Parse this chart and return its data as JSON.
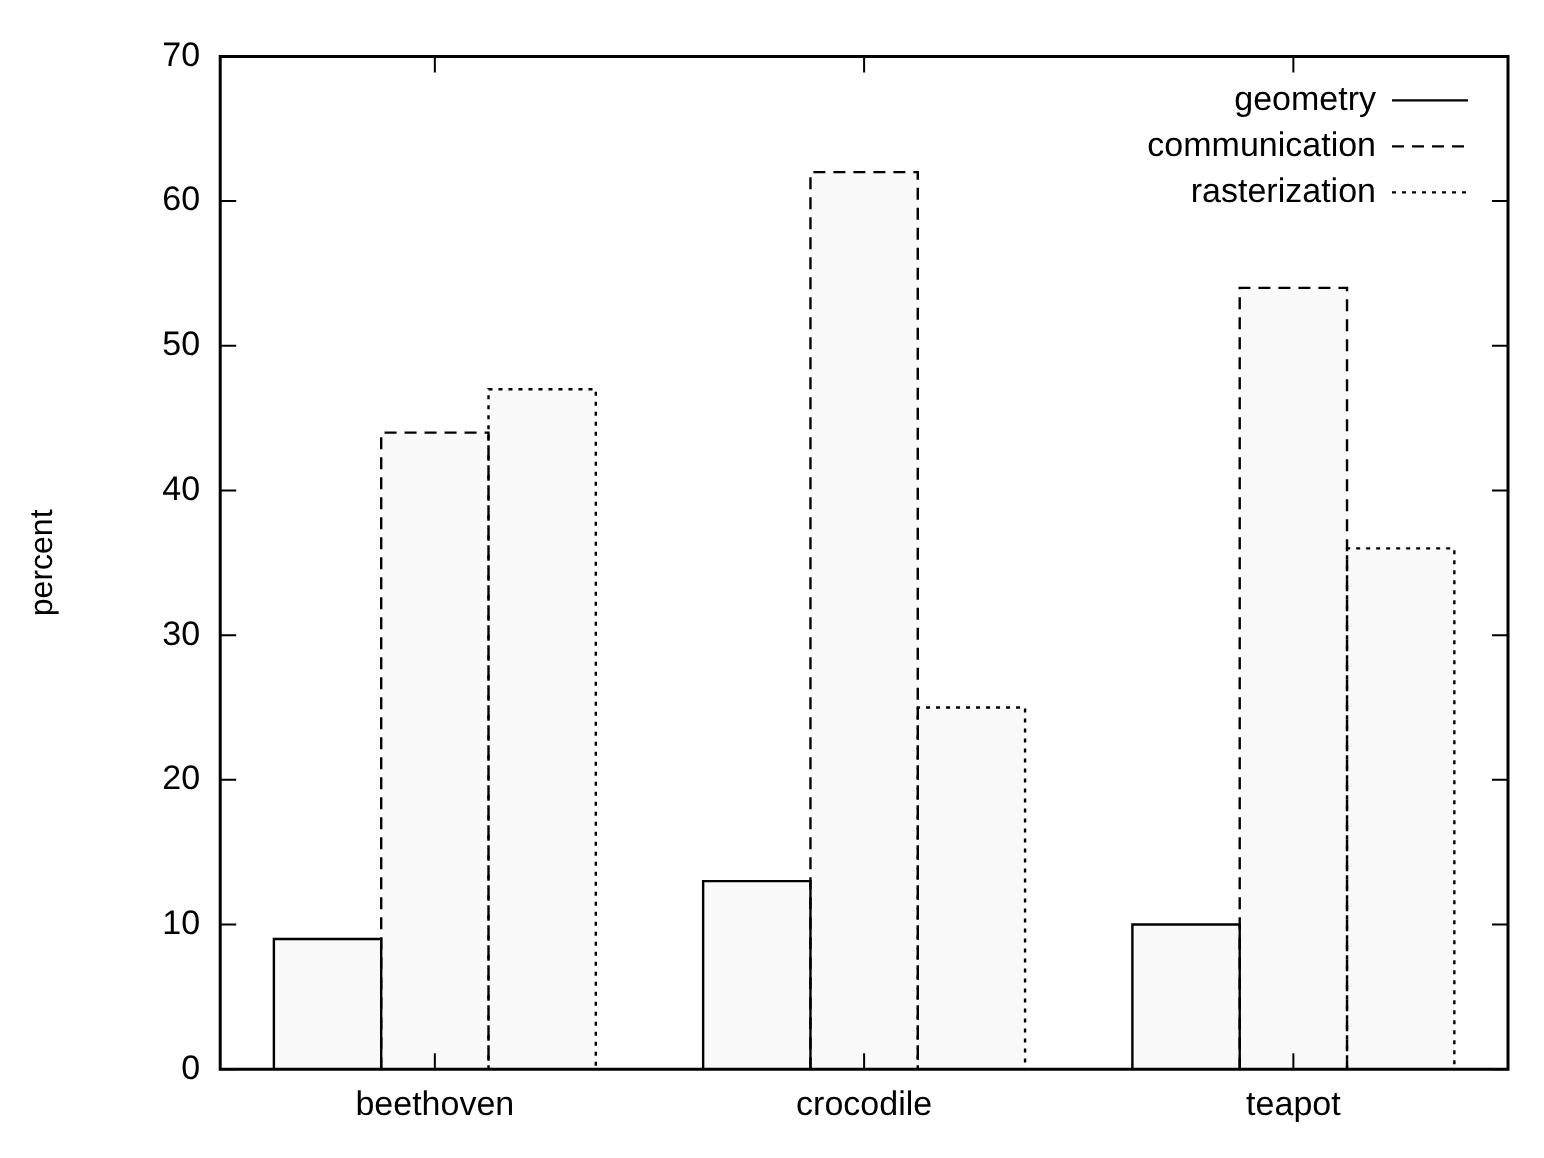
{
  "chart_data": {
    "type": "bar",
    "ylabel": "percent",
    "categories": [
      "beethoven",
      "crocodile",
      "teapot"
    ],
    "series": [
      {
        "name": "geometry",
        "color": "#000000",
        "values": [
          9,
          13,
          10
        ],
        "line_style": "solid"
      },
      {
        "name": "communication",
        "color": "#000000",
        "values": [
          44,
          62,
          54
        ],
        "line_style": "dashed"
      },
      {
        "name": "rasterization",
        "color": "#000000",
        "values": [
          47,
          25,
          36
        ],
        "line_style": "dotted"
      }
    ],
    "ylim": [
      0,
      70
    ],
    "yticks": [
      0,
      10,
      20,
      30,
      40,
      50,
      60,
      70
    ],
    "legend": "top right"
  }
}
